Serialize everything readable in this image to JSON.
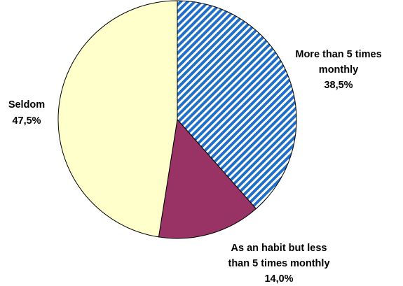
{
  "chart_data": {
    "type": "pie",
    "slices": [
      {
        "label_lines": [
          "More than 5 times",
          "monthly"
        ],
        "value_label": "38,5%",
        "value": 38.5,
        "fill": "hatched-blue",
        "color": "#1f6fc8"
      },
      {
        "label_lines": [
          "As an habit but less",
          "than 5 times monthly"
        ],
        "value_label": "14,0%",
        "value": 14.0,
        "fill": "solid",
        "color": "#993366"
      },
      {
        "label_lines": [
          "Seldom"
        ],
        "value_label": "47,5%",
        "value": 47.5,
        "fill": "solid",
        "color": "#ffffcc"
      }
    ],
    "start": "12 o'clock",
    "direction": "clockwise",
    "legend": "none"
  }
}
